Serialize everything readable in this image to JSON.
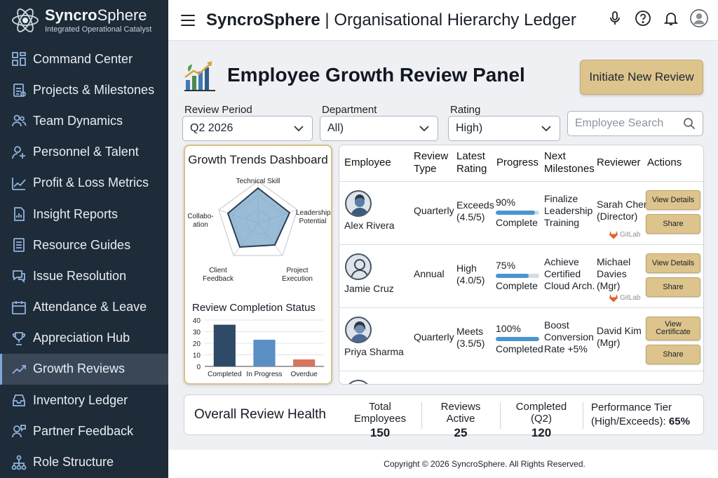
{
  "brand": {
    "name_a": "Syncro",
    "name_b": "Sphere",
    "tagline": "Integrated Operational Catalyst"
  },
  "sidebar": {
    "items": [
      {
        "label": "Command Center",
        "icon": "grid-icon"
      },
      {
        "label": "Projects & Milestones",
        "icon": "clipboard-icon"
      },
      {
        "label": "Team Dynamics",
        "icon": "users-icon"
      },
      {
        "label": "Personnel & Talent",
        "icon": "user-plus-icon"
      },
      {
        "label": "Profit & Loss Metrics",
        "icon": "line-chart-icon"
      },
      {
        "label": "Insight Reports",
        "icon": "report-icon"
      },
      {
        "label": "Resource Guides",
        "icon": "document-icon"
      },
      {
        "label": "Issue Resolution",
        "icon": "chat-icon"
      },
      {
        "label": "Attendance & Leave",
        "icon": "calendar-icon"
      },
      {
        "label": "Appreciation Hub",
        "icon": "trophy-icon"
      },
      {
        "label": "Growth Reviews",
        "icon": "trend-icon",
        "active": true
      },
      {
        "label": "Inventory Ledger",
        "icon": "inbox-icon"
      },
      {
        "label": "Partner Feedback",
        "icon": "user-chat-icon"
      },
      {
        "label": "Role Structure",
        "icon": "hierarchy-icon"
      }
    ]
  },
  "topbar": {
    "title_brand": "SyncroSphere",
    "title_sep": " | ",
    "title_rest": "Organisational Hierarchy Ledger"
  },
  "page": {
    "title": "Employee Growth Review Panel",
    "new_review_label": "Initiate New Review"
  },
  "filters": {
    "period": {
      "label": "Review Period",
      "value": "Q2 2026"
    },
    "department": {
      "label": "Department",
      "value": "All)"
    },
    "rating": {
      "label": "Rating",
      "value": "High)"
    },
    "search_placeholder": "Employee Search"
  },
  "dashboard": {
    "title": "Growth Trends Dashboard",
    "radar_labels": {
      "top": "Technical Skill",
      "right": "Leadership Potential",
      "bottom_right": "Project Execution",
      "bottom_left": "Client Feedback",
      "left": "Collabo- ation"
    },
    "completion_title": "Review Completion Status"
  },
  "chart_data": {
    "type": "bar",
    "title": "Review Completion Status",
    "categories": [
      "Completed",
      "In Progress",
      "Overdue"
    ],
    "values": [
      36,
      23,
      6
    ],
    "ylim": [
      0,
      40
    ],
    "yticks": [
      "40",
      "30",
      "20",
      "10",
      "0"
    ],
    "colors": [
      "#2f4a66",
      "#5a8fc4",
      "#d9735a"
    ]
  },
  "table": {
    "headers": {
      "employee": "Employee",
      "type_a": "Review",
      "type_b": "Type",
      "rating_a": "Latest",
      "rating_b": "Rating",
      "progress": "Progress",
      "next_a": "Next",
      "next_b": "Milestones",
      "reviewer": "Reviewer",
      "actions": "Actions"
    },
    "rows": [
      {
        "name": "Alex Rivera",
        "type": "Quarterly",
        "rating_a": "Exceeds",
        "rating_b": "(4.5/5)",
        "pct": "90%",
        "progress": 0.9,
        "status": "Complete",
        "m1": "Finalize",
        "m2": "Leadership",
        "m3": "Training",
        "r1": "Sarah Chen",
        "r2": "(Director)",
        "r3": "",
        "gitlab": "GitLab",
        "btn1": "View Details",
        "btn2": "Share"
      },
      {
        "name": "Jamie Cruz",
        "type": "Annual",
        "rating_a": "High",
        "rating_b": "(4.0/5)",
        "pct": "75%",
        "progress": 0.75,
        "status": "Complete",
        "m1": "Achieve",
        "m2": "Certified",
        "m3": "Cloud Arch.",
        "r1": "Michael",
        "r2": "Davies",
        "r3": "(Mgr)",
        "gitlab": "GitLab",
        "btn1": "View Details",
        "btn2": "Share"
      },
      {
        "name": "Priya Sharma",
        "type": "Quarterly",
        "rating_a": "Meets",
        "rating_b": "(3.5/5)",
        "pct": "100%",
        "progress": 1.0,
        "status": "Completed",
        "m1": "Boost",
        "m2": "Conversion",
        "m3": "Rate +5%",
        "r1": "David Kim",
        "r2": "(Mgr)",
        "r3": "",
        "gitlab": "",
        "btn1": "View Certificate",
        "btn2": "Share"
      }
    ]
  },
  "health": {
    "title": "Overall Review Health",
    "stats": [
      {
        "label": "Total Employees",
        "value": "150"
      },
      {
        "label": "Reviews Active",
        "value": "25"
      },
      {
        "label": "Completed (Q2)",
        "value": "120"
      }
    ],
    "tier_label_a": "Performance Tier",
    "tier_label_b": "(High/Exceeds):",
    "tier_value": "65%"
  },
  "footer": {
    "text": "Copyright © 2026 SyncroSphere. All Rights Reserved."
  }
}
